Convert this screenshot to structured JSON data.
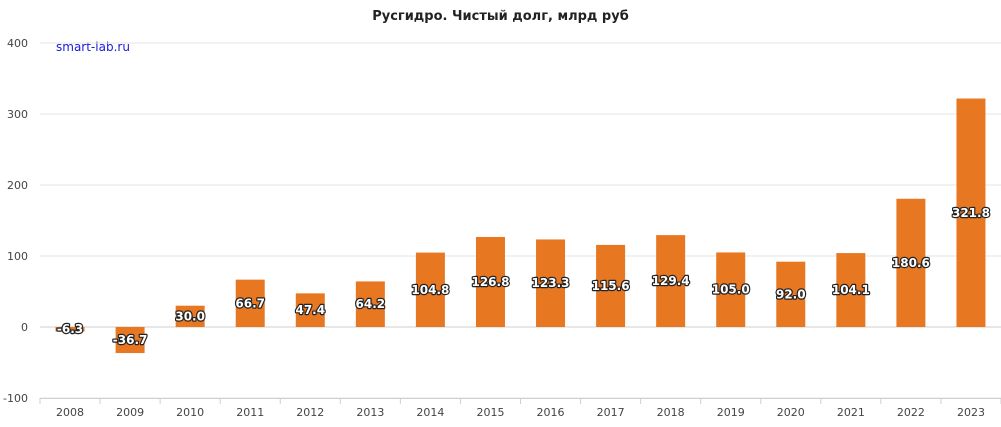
{
  "chart_data": {
    "type": "bar",
    "title": "Русгидро. Чистый долг, млрд руб",
    "watermark": "smart-lab.ru",
    "categories": [
      "2008",
      "2009",
      "2010",
      "2011",
      "2012",
      "2013",
      "2014",
      "2015",
      "2016",
      "2017",
      "2018",
      "2019",
      "2020",
      "2021",
      "2022",
      "2023"
    ],
    "values": [
      -6.3,
      -36.7,
      30.0,
      66.7,
      47.4,
      64.2,
      104.8,
      126.8,
      123.3,
      115.6,
      129.4,
      105.0,
      92.0,
      104.1,
      180.6,
      321.8
    ],
    "data_labels": [
      "-6.3",
      "-36.7",
      "30.0",
      "66.7",
      "47.4",
      "64.2",
      "104.8",
      "126.8",
      "123.3",
      "115.6",
      "129.4",
      "105.0",
      "92.0",
      "104.1",
      "180.6",
      "321.8"
    ],
    "ylim": [
      -100,
      400
    ],
    "yticks": [
      "-100",
      "0",
      "100",
      "200",
      "300",
      "400"
    ],
    "ytick_values": [
      -100,
      0,
      100,
      200,
      300,
      400
    ],
    "grid": true,
    "bar_color": "#e87722",
    "xlabel": "",
    "ylabel": ""
  }
}
